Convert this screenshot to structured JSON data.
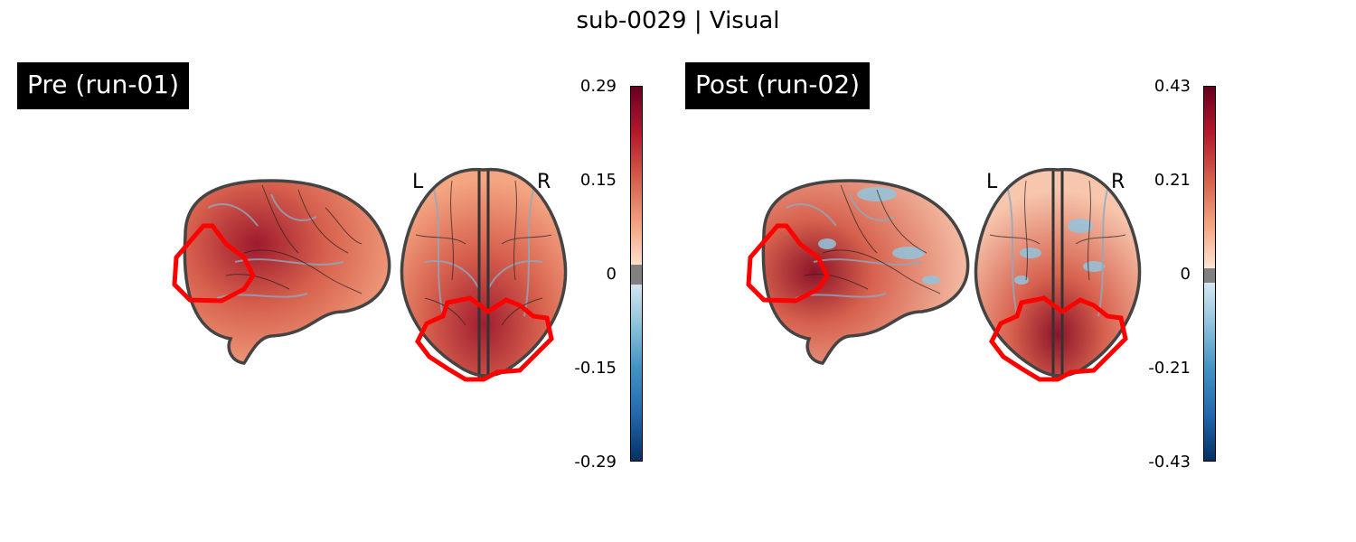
{
  "title": "sub-0029 | Visual",
  "panels": [
    {
      "label": "Pre (run-01)",
      "hemi_left": "L",
      "hemi_right": "R",
      "colorbar_ticks": [
        "0.29",
        "0.15",
        "0",
        "-0.15",
        "-0.29"
      ]
    },
    {
      "label": "Post (run-02)",
      "hemi_left": "L",
      "hemi_right": "R",
      "colorbar_ticks": [
        "0.43",
        "0.21",
        "0",
        "-0.21",
        "-0.43"
      ]
    }
  ],
  "colors": {
    "roi_outline": "#ff0000",
    "positive": "#b2182b",
    "negative": "#2166ac",
    "threshold": "#808080"
  },
  "icons": [
    "sagittal-brain-glass-view",
    "axial-brain-glass-view",
    "roi-outline"
  ]
}
